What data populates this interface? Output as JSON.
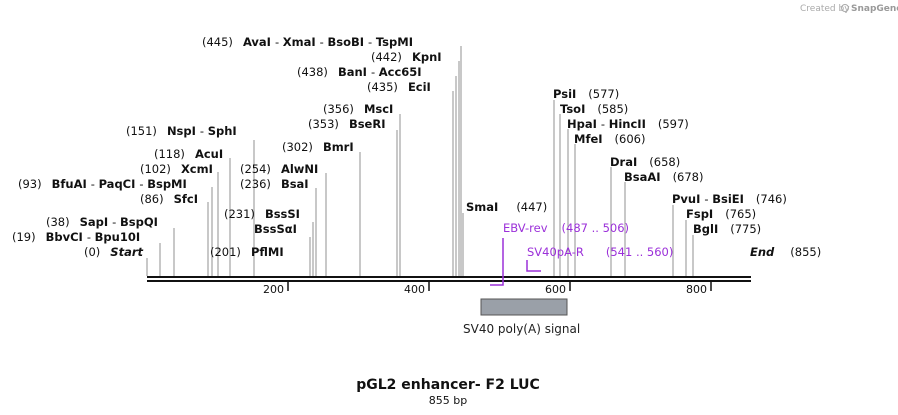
{
  "credit": {
    "created_by": "Created by",
    "brand": "SnapGene"
  },
  "map": {
    "title": "pGL2 enhancer- F2 LUC",
    "length": "855 bp",
    "colors": {
      "line": "#111111",
      "primer": "#9b30d9",
      "feature": "#9aa0a8"
    },
    "ticks": [
      "200",
      "400",
      "600",
      "800"
    ],
    "feature": {
      "name": "SV40 poly(A) signal"
    },
    "ends": {
      "start": "Start",
      "start_pos": "(0)",
      "end": "End",
      "end_pos": "(855)"
    },
    "sites_left": [
      {
        "pos": "(445)",
        "names": [
          "AvaI",
          "XmaI",
          "BsoBI",
          "TspMI"
        ]
      },
      {
        "pos": "(442)",
        "names": [
          "KpnI"
        ]
      },
      {
        "pos": "(438)",
        "names": [
          "BanI",
          "Acc65I"
        ]
      },
      {
        "pos": "(435)",
        "names": [
          "EciI"
        ]
      },
      {
        "pos": "(356)",
        "names": [
          "MscI"
        ]
      },
      {
        "pos": "(353)",
        "names": [
          "BseRI"
        ]
      },
      {
        "pos": "(302)",
        "names": [
          "BmrI"
        ]
      },
      {
        "pos": "(151)",
        "names": [
          "NspI",
          "SphI"
        ]
      },
      {
        "pos": "(118)",
        "names": [
          "AcuI"
        ]
      },
      {
        "pos": "(254)",
        "names": [
          "AlwNI"
        ]
      },
      {
        "pos": "(102)",
        "names": [
          "XcmI"
        ]
      },
      {
        "pos": "(236)",
        "names": [
          "BsaI"
        ]
      },
      {
        "pos": "(93)",
        "names": [
          "BfuAI",
          "PaqCI",
          "BspMI"
        ]
      },
      {
        "pos": "(86)",
        "names": [
          "SfcI"
        ]
      },
      {
        "pos": "(231)",
        "names": [
          "BssSI"
        ]
      },
      {
        "pos": "(38)",
        "names": [
          "SapI",
          "BspQI"
        ]
      },
      {
        "pos": "",
        "names": [
          "BssSαI"
        ]
      },
      {
        "pos": "(19)",
        "names": [
          "BbvCI",
          "Bpu10I"
        ]
      },
      {
        "pos": "(201)",
        "names": [
          "PflMI"
        ]
      }
    ],
    "sites_right": [
      {
        "pos": "(577)",
        "names": [
          "PsiI"
        ]
      },
      {
        "pos": "(585)",
        "names": [
          "TsoI"
        ]
      },
      {
        "pos": "(597)",
        "names": [
          "HpaI",
          "HincII"
        ]
      },
      {
        "pos": "(606)",
        "names": [
          "MfeI"
        ]
      },
      {
        "pos": "(658)",
        "names": [
          "DraI"
        ]
      },
      {
        "pos": "(678)",
        "names": [
          "BsaAI"
        ]
      },
      {
        "pos": "(746)",
        "names": [
          "PvuI",
          "BsiEI"
        ]
      },
      {
        "pos": "(765)",
        "names": [
          "FspI"
        ]
      },
      {
        "pos": "(775)",
        "names": [
          "BglI"
        ]
      },
      {
        "pos": "(447)",
        "names": [
          "SmaI"
        ]
      }
    ],
    "primers": [
      {
        "name": "EBV-rev",
        "range": "(487 .. 506)"
      },
      {
        "name": "SV40pA-R",
        "range": "(541 .. 560)"
      }
    ]
  }
}
